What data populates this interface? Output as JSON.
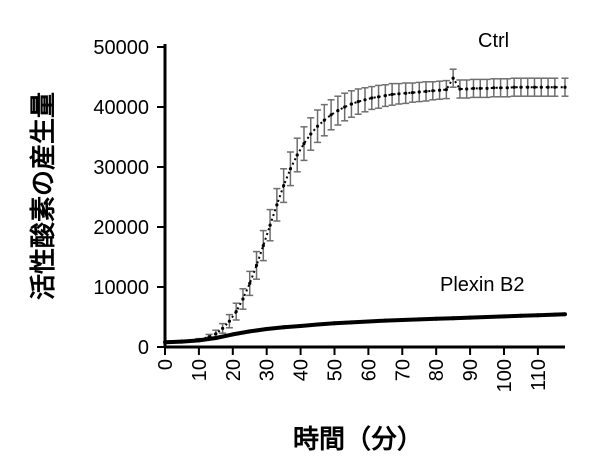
{
  "chart_data": {
    "type": "line",
    "title": "",
    "xlabel": "時間（分）",
    "ylabel": "活性酸素の産生量",
    "xlim": [
      0,
      118
    ],
    "ylim": [
      0,
      50000
    ],
    "x_ticks": [
      0,
      10,
      20,
      30,
      40,
      50,
      60,
      70,
      80,
      90,
      100,
      110
    ],
    "x_tick_labels": [
      "0",
      "10",
      "20",
      "30",
      "40",
      "50",
      "60",
      "70",
      "80",
      "90",
      "100",
      "110"
    ],
    "y_ticks": [
      0,
      10000,
      20000,
      30000,
      40000,
      50000
    ],
    "y_tick_labels": [
      "0",
      "10000",
      "20000",
      "30000",
      "40000",
      "50000"
    ],
    "grid": false,
    "legend": "series labels placed inline next to curves",
    "series": [
      {
        "name": "Ctrl",
        "color": "#000000",
        "error_bar_color": "#6e6e6e",
        "x": [
          0,
          5,
          10,
          13,
          15,
          17,
          19,
          21,
          23,
          25,
          27,
          29,
          31,
          33,
          35,
          37,
          39,
          41,
          43,
          45,
          47,
          49,
          51,
          53,
          55,
          57,
          59,
          61,
          63,
          65,
          67,
          69,
          71,
          73,
          75,
          77,
          79,
          81,
          83,
          85,
          87,
          89,
          91,
          93,
          95,
          97,
          99,
          101,
          103,
          105,
          107,
          109,
          111,
          113,
          115,
          118
        ],
        "values": [
          800,
          1000,
          1200,
          1700,
          2200,
          3100,
          4300,
          5900,
          8000,
          10600,
          13600,
          16900,
          20300,
          23700,
          26900,
          29700,
          32000,
          33900,
          35500,
          36800,
          37800,
          38700,
          39400,
          40000,
          40500,
          40900,
          41200,
          41500,
          41700,
          41900,
          42100,
          42200,
          42300,
          42400,
          42500,
          42600,
          42700,
          42800,
          42900,
          44800,
          43000,
          43000,
          43100,
          43100,
          43100,
          43200,
          43200,
          43200,
          43300,
          43300,
          43300,
          43300,
          43300,
          43300,
          43300,
          43300
        ],
        "errors": [
          0,
          100,
          200,
          400,
          600,
          800,
          1100,
          1400,
          1700,
          2000,
          2300,
          2500,
          2600,
          2700,
          2800,
          2800,
          2800,
          2800,
          2700,
          2700,
          2600,
          2500,
          2400,
          2300,
          2200,
          2100,
          2000,
          1900,
          1900,
          1800,
          1800,
          1700,
          1700,
          1600,
          1600,
          1600,
          1500,
          1500,
          1500,
          1500,
          1500,
          1500,
          1500,
          1500,
          1500,
          1500,
          1500,
          1500,
          1500,
          1500,
          1500,
          1500,
          1500,
          1500,
          1500,
          1500
        ]
      },
      {
        "name": "Plexin B2",
        "color": "#000000",
        "x": [
          0,
          5,
          10,
          15,
          20,
          25,
          30,
          35,
          40,
          45,
          50,
          55,
          60,
          65,
          70,
          75,
          80,
          85,
          90,
          95,
          100,
          105,
          110,
          115,
          118
        ],
        "values": [
          800,
          900,
          1100,
          1500,
          2100,
          2600,
          3000,
          3300,
          3500,
          3750,
          3950,
          4100,
          4250,
          4400,
          4500,
          4600,
          4700,
          4800,
          4900,
          5000,
          5100,
          5200,
          5300,
          5400,
          5450
        ]
      }
    ]
  }
}
